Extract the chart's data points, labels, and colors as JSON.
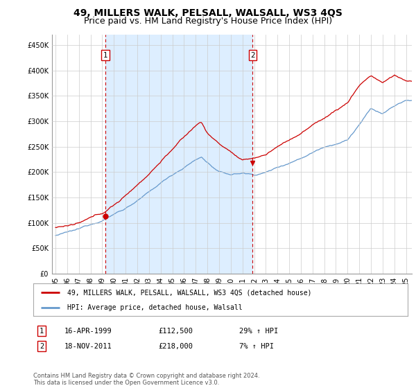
{
  "title": "49, MILLERS WALK, PELSALL, WALSALL, WS3 4QS",
  "subtitle": "Price paid vs. HM Land Registry's House Price Index (HPI)",
  "ytick_values": [
    0,
    50000,
    100000,
    150000,
    200000,
    250000,
    300000,
    350000,
    400000,
    450000
  ],
  "ylim": [
    0,
    470000
  ],
  "xlim_start": 1994.7,
  "xlim_end": 2025.5,
  "hpi_color": "#6699cc",
  "price_color": "#cc0000",
  "shade_color": "#ddeeff",
  "marker1_date": 1999.29,
  "marker1_value": 112500,
  "marker1_label": "1",
  "marker2_date": 2011.88,
  "marker2_value": 218000,
  "marker2_label": "2",
  "legend_line1": "49, MILLERS WALK, PELSALL, WALSALL, WS3 4QS (detached house)",
  "legend_line2": "HPI: Average price, detached house, Walsall",
  "table_row1": [
    "1",
    "16-APR-1999",
    "£112,500",
    "29% ↑ HPI"
  ],
  "table_row2": [
    "2",
    "18-NOV-2011",
    "£218,000",
    "7% ↑ HPI"
  ],
  "footnote": "Contains HM Land Registry data © Crown copyright and database right 2024.\nThis data is licensed under the Open Government Licence v3.0.",
  "vline1_x": 1999.29,
  "vline2_x": 2011.88,
  "background_color": "#ffffff",
  "grid_color": "#cccccc",
  "title_fontsize": 10,
  "subtitle_fontsize": 9,
  "xtick_labels": [
    "95",
    "96",
    "97",
    "98",
    "99",
    "00",
    "01",
    "02",
    "03",
    "04",
    "05",
    "06",
    "07",
    "08",
    "09",
    "10",
    "11",
    "12",
    "13",
    "14",
    "15",
    "16",
    "17",
    "18",
    "19",
    "20",
    "21",
    "22",
    "23",
    "24",
    "25"
  ]
}
